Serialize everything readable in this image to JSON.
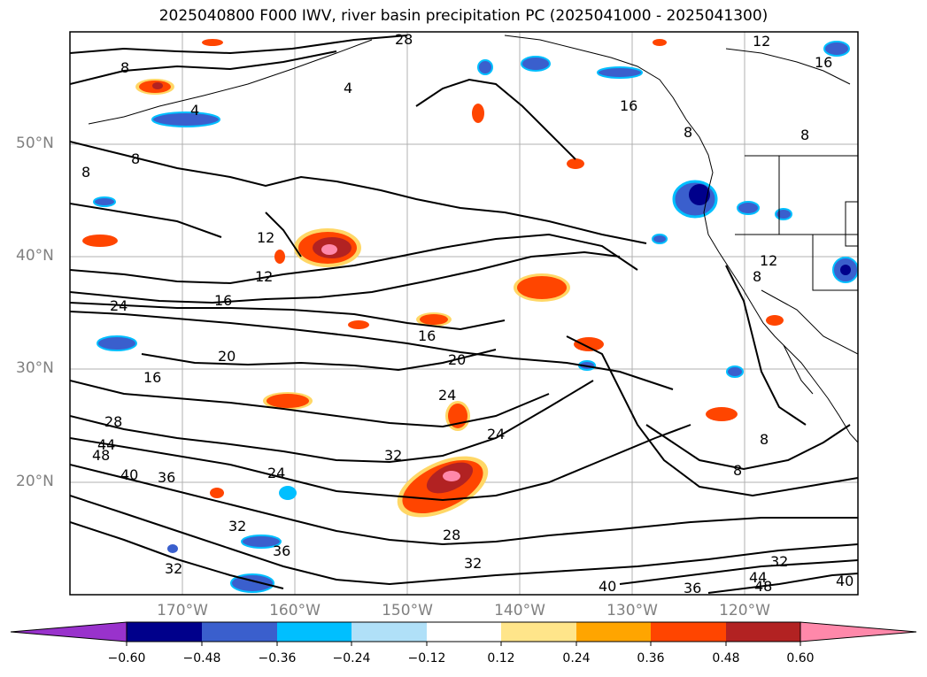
{
  "title": "2025040800 F000 IWV, river basin precipitation PC (2025041000 - 2025041300)",
  "lat_labels": [
    "50°N",
    "40°N",
    "30°N",
    "20°N"
  ],
  "lon_labels": [
    "170°W",
    "160°W",
    "150°W",
    "140°W",
    "130°W",
    "120°W"
  ],
  "contour_labels": [
    "8",
    "8",
    "8",
    "4",
    "4",
    "8",
    "12",
    "16",
    "28",
    "12",
    "12",
    "16",
    "24",
    "16",
    "20",
    "16",
    "20",
    "24",
    "24",
    "28",
    "44",
    "48",
    "40",
    "36",
    "24",
    "32",
    "28",
    "32",
    "36",
    "32",
    "32",
    "40",
    "36",
    "44",
    "48",
    "32",
    "40",
    "8",
    "8",
    "12",
    "8",
    "8",
    "16"
  ],
  "colorbar": {
    "ticks": [
      "−0.60",
      "−0.48",
      "−0.36",
      "−0.24",
      "−0.12",
      "0.12",
      "0.24",
      "0.36",
      "0.48",
      "0.60"
    ],
    "colors": [
      "#9932cc",
      "#00008b",
      "#3a5fcd",
      "#00bfff",
      "#b0e0f8",
      "#ffffff",
      "#ffe58a",
      "#ffa500",
      "#ff4500",
      "#b22222",
      "#ff88aa",
      "#ff88aa"
    ]
  }
}
